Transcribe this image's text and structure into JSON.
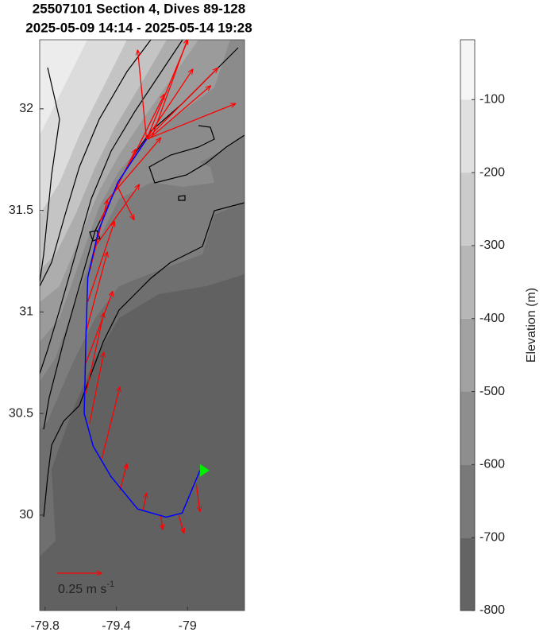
{
  "chart_data": {
    "type": "quiver",
    "title": "25507101 Section 4, Dives 89-128",
    "subtitle": "2025-05-09 14:14 - 2025-05-14 19:28",
    "xlim": [
      -79.83,
      -78.68
    ],
    "ylim": [
      29.53,
      32.34
    ],
    "xticks": [
      -79.8,
      -79.4,
      -79
    ],
    "yticks": [
      30,
      30.5,
      31,
      31.5,
      32
    ],
    "track": {
      "color": "#0000ff",
      "lon": [
        -79.23,
        -79.39,
        -79.5,
        -79.56,
        -79.57,
        -79.58,
        -79.53,
        -79.43,
        -79.28,
        -79.12,
        -79.03,
        -78.93
      ],
      "lat": [
        31.85,
        31.64,
        31.4,
        31.17,
        30.89,
        30.5,
        30.34,
        30.19,
        30.03,
        29.99,
        30.01,
        30.22
      ]
    },
    "end_color": "#00ee00",
    "arrows": {
      "color": "#ff0000",
      "lon": [
        -79.25,
        -79.15,
        -79.05,
        -78.95,
        -79.38,
        -79.48,
        -79.55,
        -79.57,
        -79.57,
        -79.57,
        -79.56,
        -79.55,
        -79.52,
        -79.49,
        -79.45,
        -79.4,
        -79.33,
        -79.27,
        -79.23,
        -79.23,
        -79.23,
        -79.23,
        -79.22,
        -79.2
      ],
      "lat": [
        30.02,
        30.0,
        30.0,
        30.15,
        30.12,
        30.28,
        30.45,
        30.6,
        30.75,
        30.9,
        31.05,
        31.2,
        31.32,
        31.45,
        31.55,
        31.63,
        31.72,
        31.8,
        31.85,
        31.85,
        31.85,
        31.85,
        31.85,
        31.86
      ],
      "u": [
        0.02,
        0.01,
        0.03,
        0.02,
        0.04,
        0.1,
        0.08,
        0.1,
        0.15,
        0.12,
        0.15,
        0.1,
        0.25,
        0.2,
        0.3,
        0.1,
        0.2,
        0.3,
        0.4,
        0.5,
        0.25,
        -0.05,
        0.35,
        0.2
      ],
      "v": [
        0.1,
        -0.08,
        -0.1,
        -0.15,
        0.15,
        0.4,
        0.4,
        0.45,
        0.4,
        0.45,
        0.45,
        0.4,
        0.35,
        0.4,
        0.35,
        -0.2,
        0.4,
        0.45,
        0.4,
        0.2,
        0.6,
        0.5,
        0.3,
        0.55
      ]
    },
    "key": {
      "speed": 0.25,
      "label": "0.25 m s",
      "superscript": "-1"
    },
    "colorbar": {
      "label": "Elevation (m)",
      "clim": [
        -800,
        -18
      ],
      "ticks": [
        -800,
        -700,
        -600,
        -500,
        -400,
        -300,
        -200,
        -100
      ],
      "colors": [
        "#5a5a5a",
        "#ffffff"
      ]
    }
  }
}
